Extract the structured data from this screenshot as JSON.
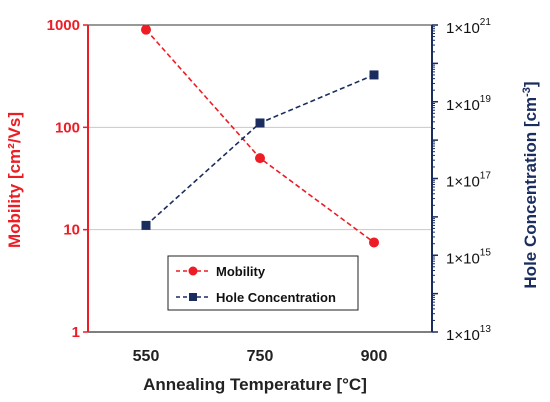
{
  "chart_data": {
    "type": "line",
    "xlabel": "Annealing Temperature [°C]",
    "ylabel_left": "Mobility [cm²/Vs]",
    "ylabel_right_base": "Hole Concentration [cm",
    "ylabel_right_exp": "-3",
    "ylabel_right_close": "]",
    "categories": [
      "550",
      "750",
      "900"
    ],
    "left_axis": {
      "scale": "log",
      "ylim": [
        1,
        1000
      ],
      "ticks": [
        "1",
        "10",
        "100",
        "1000"
      ],
      "color": "#ee1c25"
    },
    "right_axis": {
      "scale": "log",
      "ylim": [
        10000000000000.0,
        1e+21
      ],
      "ticks": [
        {
          "base": "1×10",
          "exp": "13"
        },
        {
          "base": "1×10",
          "exp": "15"
        },
        {
          "base": "1×10",
          "exp": "17"
        },
        {
          "base": "1×10",
          "exp": "19"
        },
        {
          "base": "1×10",
          "exp": "21"
        }
      ],
      "color": "#1a2d5e"
    },
    "grid": "horizontal",
    "legend_position": "bottom-center",
    "series": [
      {
        "name": "Mobility",
        "axis": "left",
        "marker": "circle",
        "color": "#ee1c25",
        "values": [
          900,
          50,
          7.5
        ]
      },
      {
        "name": "Hole Concentration",
        "axis": "right",
        "marker": "square",
        "color": "#1a2d5e",
        "values": [
          6000000000000000.0,
          2.8e+18,
          5e+19
        ]
      }
    ]
  }
}
